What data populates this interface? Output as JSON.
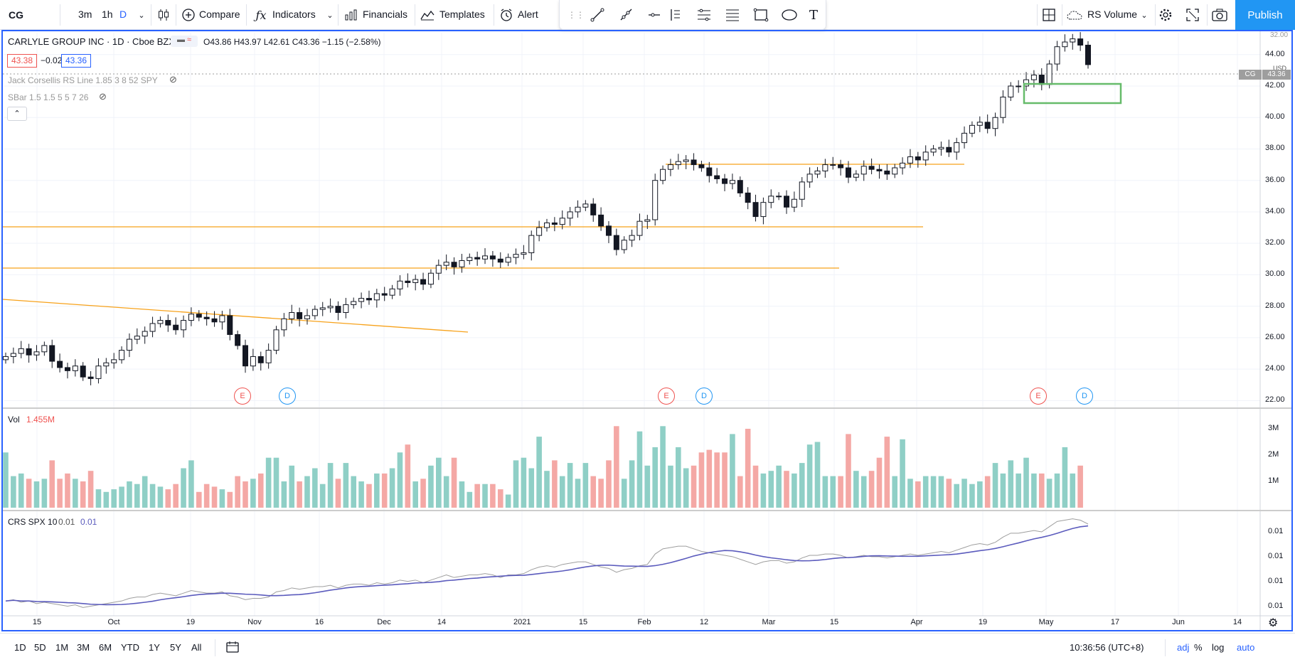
{
  "symbol": "CG",
  "intervals": [
    "3m",
    "1h",
    "D"
  ],
  "toolbar": {
    "compare": "Compare",
    "indicators": "Indicators",
    "financials": "Financials",
    "templates": "Templates",
    "alert": "Alert",
    "rs_volume": "RS Volume",
    "publish": "Publish"
  },
  "legend": {
    "title": "CARLYLE GROUP INC · 1D · Cboe BZX",
    "ohlc": "O43.86 H43.97 L42.61 C43.36 −1.15 (−2.58%)",
    "bid": "43.38",
    "spread": "−0.02",
    "ask": "43.36",
    "indicator1": "Jack Corsellis RS Line 1.85 3 8 52 SPY",
    "indicator2": "SBar 1.5 1.5 5 5 7 26",
    "vol_label": "Vol",
    "vol_value": "1.455M",
    "crs_label": "CRS SPX 10",
    "crs_v1": "0.01",
    "crs_v2": "0.01"
  },
  "price_axis": {
    "ticks": [
      "44.00",
      "42.00",
      "40.00",
      "38.00",
      "36.00",
      "34.00",
      "32.00",
      "30.00",
      "28.00",
      "26.00",
      "24.00",
      "22.00"
    ],
    "top_label": "32.00",
    "currency": "USD",
    "tag_symbol": "CG",
    "tag_value": "43.36"
  },
  "volume_axis": {
    "ticks": [
      "3M",
      "2M",
      "1M"
    ]
  },
  "crs_axis": {
    "ticks": [
      "0.01",
      "0.01",
      "0.01",
      "0.01"
    ]
  },
  "time_axis": [
    "15",
    "Oct",
    "19",
    "Nov",
    "16",
    "Dec",
    "14",
    "2021",
    "15",
    "Feb",
    "12",
    "Mar",
    "15",
    "Apr",
    "19",
    "May",
    "17",
    "Jun",
    "14"
  ],
  "markers": [
    {
      "t": "E"
    },
    {
      "t": "D"
    },
    {
      "t": "E"
    },
    {
      "t": "D"
    },
    {
      "t": "E"
    },
    {
      "t": "D"
    }
  ],
  "bottombar": {
    "ranges": [
      "1D",
      "5D",
      "1M",
      "3M",
      "6M",
      "YTD",
      "1Y",
      "5Y",
      "All"
    ],
    "time": "10:36:56 (UTC+8)",
    "adj": "adj",
    "pct": "%",
    "log": "log",
    "auto": "auto"
  },
  "colors": {
    "up": "#26a69a",
    "down": "#ef5350",
    "accent": "#2962ff",
    "level": "#f7a21b",
    "crs_fast": "#9e9e9e",
    "crs_slow": "#5b5bbd",
    "box": "#66bb6a"
  },
  "chart_data": {
    "type": "candlestick",
    "ylim": [
      22,
      45
    ],
    "closes": [
      24.8,
      25,
      25.3,
      24.9,
      25.1,
      25.5,
      24.5,
      24.1,
      23.9,
      24.2,
      23.5,
      23.4,
      24.2,
      24.4,
      24.6,
      25.2,
      25.9,
      26.1,
      26.4,
      26.9,
      27.1,
      26.8,
      26.5,
      27.1,
      27.5,
      27.3,
      27.2,
      27,
      27.4,
      26.2,
      25.5,
      24.2,
      24.8,
      24.4,
      25.2,
      26.5,
      27.2,
      27.6,
      27.2,
      27.4,
      27.8,
      27.9,
      28,
      27.6,
      28.1,
      28.3,
      28.5,
      28.4,
      28.8,
      28.7,
      29.1,
      29.6,
      29.5,
      29.7,
      29.4,
      30.1,
      30.6,
      30.8,
      30.5,
      30.9,
      31.1,
      31,
      31.2,
      31,
      30.8,
      31.1,
      31.3,
      31.4,
      32.5,
      33,
      33.3,
      33.2,
      33.6,
      34,
      34.3,
      34.5,
      33.8,
      33.1,
      32.5,
      31.6,
      32.2,
      32.5,
      33.4,
      33.5,
      36,
      36.7,
      37,
      37.2,
      37.3,
      37,
      36.8,
      36.3,
      36.1,
      35.8,
      36,
      35.2,
      34.6,
      33.7,
      34.6,
      35,
      35,
      34.3,
      34.8,
      35.9,
      36.4,
      36.6,
      37,
      37,
      36.8,
      36.2,
      36.4,
      36.9,
      36.7,
      36.6,
      36.4,
      36.8,
      37.1,
      37.5,
      37.3,
      37.8,
      38,
      38.1,
      37.8,
      38.4,
      39,
      39.5,
      39.7,
      39.3,
      40,
      41.3,
      42,
      42,
      42.4,
      42.7,
      42.1,
      43.4,
      44.5,
      44.8,
      45,
      44.6,
      43.36
    ],
    "volume_mil": [
      2.1,
      1.2,
      1.3,
      1.1,
      1,
      1.1,
      1.8,
      1.1,
      1.3,
      1.1,
      1,
      1.4,
      0.7,
      0.6,
      0.7,
      0.8,
      1,
      0.9,
      1.2,
      0.9,
      0.8,
      0.7,
      0.9,
      1.5,
      1.8,
      0.6,
      0.9,
      0.8,
      0.7,
      0.6,
      1.2,
      1,
      1.1,
      1.3,
      1.9,
      1.9,
      1,
      1.6,
      1,
      1.2,
      1.5,
      0.9,
      1.7,
      1.1,
      1.7,
      1.2,
      1,
      0.9,
      1.3,
      1.3,
      1.5,
      2.1,
      2.4,
      1,
      1.1,
      1.6,
      1.9,
      1.2,
      1.9,
      1,
      0.6,
      0.9,
      0.9,
      0.9,
      0.7,
      0.5,
      1.8,
      1.9,
      1.5,
      2.7,
      1.4,
      1.8,
      1.2,
      1.7,
      1.1,
      1.7,
      1.2,
      1.1,
      1.8,
      3.1,
      1.1,
      1.8,
      2.9,
      1.6,
      2.3,
      3.1,
      1.6,
      2.3,
      1.5,
      1.6,
      2.1,
      2.2,
      2.1,
      2.1,
      2.8,
      1.2,
      3,
      1.6,
      1.3,
      1.4,
      1.6,
      1.4,
      1.3,
      1.7,
      2.4,
      2.5,
      1.2,
      1.2,
      1.2,
      2.8,
      1.4,
      1.2,
      1.4,
      1.9,
      2.7,
      1.2,
      2.6,
      1.1,
      1,
      1.2,
      1.2,
      1.2,
      1.1,
      0.9,
      1.1,
      0.9,
      1,
      1.2,
      1.7,
      1.3,
      1.8,
      1.3,
      1.9,
      1.3,
      1.3,
      1.1,
      1.3,
      2.3,
      1.3,
      1.6
    ],
    "crs_fast": [
      0.92,
      0.93,
      0.91,
      0.92,
      0.9,
      0.91,
      0.9,
      0.89,
      0.88,
      0.89,
      0.87,
      0.88,
      0.89,
      0.9,
      0.91,
      0.92,
      0.94,
      0.95,
      0.95,
      0.97,
      0.98,
      0.97,
      0.96,
      0.98,
      1,
      0.99,
      0.98,
      0.98,
      0.99,
      0.96,
      0.95,
      0.93,
      0.94,
      0.94,
      0.95,
      0.99,
      1,
      1.02,
      1.01,
      1.02,
      1.03,
      1.03,
      1.04,
      1.02,
      1.04,
      1.05,
      1.05,
      1.04,
      1.06,
      1.05,
      1.06,
      1.08,
      1.07,
      1.08,
      1.06,
      1.08,
      1.1,
      1.12,
      1.1,
      1.11,
      1.12,
      1.12,
      1.13,
      1.12,
      1.1,
      1.12,
      1.12,
      1.13,
      1.16,
      1.18,
      1.19,
      1.18,
      1.2,
      1.21,
      1.22,
      1.22,
      1.2,
      1.18,
      1.17,
      1.14,
      1.16,
      1.17,
      1.19,
      1.2,
      1.28,
      1.32,
      1.33,
      1.34,
      1.34,
      1.32,
      1.3,
      1.29,
      1.28,
      1.27,
      1.26,
      1.24,
      1.22,
      1.2,
      1.22,
      1.23,
      1.23,
      1.21,
      1.22,
      1.25,
      1.27,
      1.27,
      1.28,
      1.28,
      1.27,
      1.25,
      1.26,
      1.27,
      1.26,
      1.26,
      1.25,
      1.26,
      1.27,
      1.28,
      1.27,
      1.28,
      1.29,
      1.3,
      1.29,
      1.31,
      1.33,
      1.35,
      1.36,
      1.35,
      1.37,
      1.41,
      1.44,
      1.44,
      1.45,
      1.46,
      1.45,
      1.49,
      1.53,
      1.54,
      1.55,
      1.54,
      1.51
    ]
  }
}
